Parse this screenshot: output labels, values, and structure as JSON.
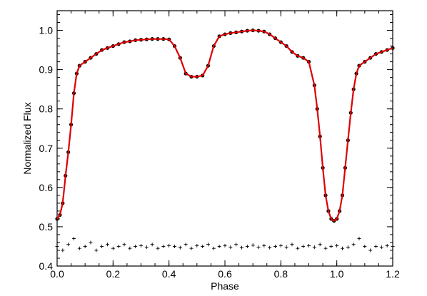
{
  "chart_data": {
    "type": "scatter",
    "title": "",
    "xlabel": "Phase",
    "ylabel": "Normalized Flux",
    "xlim": [
      0.0,
      1.2
    ],
    "ylim": [
      0.4,
      1.05
    ],
    "x_ticks": [
      0.0,
      0.2,
      0.4,
      0.6,
      0.8,
      1.0,
      1.2
    ],
    "x_tick_labels": [
      "0.0",
      "0.2",
      "0.4",
      "0.6",
      "0.8",
      "1.0",
      "1.2"
    ],
    "y_ticks": [
      0.4,
      0.5,
      0.6,
      0.7,
      0.8,
      0.9,
      1.0
    ],
    "y_tick_labels": [
      "0.4",
      "0.5",
      "0.6",
      "0.7",
      "0.8",
      "0.9",
      "1.0"
    ],
    "grid": false,
    "legend": "none",
    "colors": {
      "observations": "#000000",
      "model": "#dd0000",
      "residuals": "#000000"
    },
    "series": [
      {
        "kind": "observations",
        "marker": "dot",
        "color": "#000000",
        "x": [
          0.0,
          0.01,
          0.02,
          0.03,
          0.04,
          0.05,
          0.06,
          0.07,
          0.08,
          0.1,
          0.12,
          0.14,
          0.16,
          0.18,
          0.2,
          0.22,
          0.24,
          0.26,
          0.28,
          0.3,
          0.32,
          0.34,
          0.36,
          0.38,
          0.4,
          0.42,
          0.44,
          0.46,
          0.48,
          0.5,
          0.52,
          0.54,
          0.56,
          0.58,
          0.6,
          0.62,
          0.64,
          0.66,
          0.68,
          0.7,
          0.72,
          0.74,
          0.76,
          0.78,
          0.8,
          0.82,
          0.84,
          0.86,
          0.88,
          0.9,
          0.92,
          0.93,
          0.94,
          0.95,
          0.96,
          0.97,
          0.98,
          0.99,
          1.0,
          1.01,
          1.02,
          1.03,
          1.04,
          1.05,
          1.06,
          1.07,
          1.08,
          1.1,
          1.12,
          1.14,
          1.16,
          1.18,
          1.2
        ],
        "y": [
          0.52,
          0.53,
          0.56,
          0.63,
          0.69,
          0.76,
          0.84,
          0.89,
          0.91,
          0.92,
          0.93,
          0.94,
          0.95,
          0.955,
          0.96,
          0.965,
          0.97,
          0.972,
          0.975,
          0.976,
          0.977,
          0.978,
          0.978,
          0.978,
          0.977,
          0.96,
          0.93,
          0.89,
          0.882,
          0.882,
          0.885,
          0.91,
          0.96,
          0.985,
          0.99,
          0.993,
          0.995,
          0.997,
          0.999,
          1.0,
          0.999,
          0.997,
          0.99,
          0.98,
          0.97,
          0.96,
          0.945,
          0.935,
          0.93,
          0.92,
          0.86,
          0.8,
          0.73,
          0.65,
          0.58,
          0.54,
          0.52,
          0.515,
          0.52,
          0.54,
          0.58,
          0.65,
          0.72,
          0.79,
          0.85,
          0.89,
          0.91,
          0.92,
          0.93,
          0.94,
          0.945,
          0.95,
          0.955
        ]
      },
      {
        "kind": "model",
        "marker": "line",
        "color": "#dd0000",
        "x": [
          0.0,
          0.01,
          0.02,
          0.03,
          0.04,
          0.05,
          0.06,
          0.07,
          0.08,
          0.1,
          0.12,
          0.14,
          0.16,
          0.18,
          0.2,
          0.22,
          0.24,
          0.26,
          0.28,
          0.3,
          0.32,
          0.34,
          0.36,
          0.38,
          0.4,
          0.42,
          0.44,
          0.46,
          0.48,
          0.5,
          0.52,
          0.54,
          0.56,
          0.58,
          0.6,
          0.62,
          0.64,
          0.66,
          0.68,
          0.7,
          0.72,
          0.74,
          0.76,
          0.78,
          0.8,
          0.82,
          0.84,
          0.86,
          0.88,
          0.9,
          0.92,
          0.93,
          0.94,
          0.95,
          0.96,
          0.97,
          0.98,
          0.99,
          1.0,
          1.01,
          1.02,
          1.03,
          1.04,
          1.05,
          1.06,
          1.07,
          1.08,
          1.1,
          1.12,
          1.14,
          1.16,
          1.18,
          1.2
        ],
        "y": [
          0.52,
          0.53,
          0.56,
          0.63,
          0.69,
          0.76,
          0.84,
          0.89,
          0.91,
          0.92,
          0.93,
          0.94,
          0.95,
          0.955,
          0.96,
          0.965,
          0.97,
          0.972,
          0.975,
          0.976,
          0.977,
          0.978,
          0.978,
          0.978,
          0.977,
          0.96,
          0.93,
          0.89,
          0.882,
          0.882,
          0.885,
          0.91,
          0.96,
          0.985,
          0.99,
          0.993,
          0.995,
          0.997,
          0.999,
          1.0,
          0.999,
          0.997,
          0.99,
          0.98,
          0.97,
          0.96,
          0.945,
          0.935,
          0.93,
          0.92,
          0.86,
          0.8,
          0.73,
          0.65,
          0.58,
          0.54,
          0.52,
          0.515,
          0.52,
          0.54,
          0.58,
          0.65,
          0.72,
          0.79,
          0.85,
          0.89,
          0.91,
          0.92,
          0.93,
          0.94,
          0.945,
          0.95,
          0.955
        ]
      },
      {
        "kind": "residuals",
        "marker": "plus",
        "color": "#000000",
        "x": [
          0.0,
          0.02,
          0.04,
          0.06,
          0.08,
          0.1,
          0.12,
          0.14,
          0.16,
          0.18,
          0.2,
          0.22,
          0.24,
          0.26,
          0.28,
          0.3,
          0.32,
          0.34,
          0.36,
          0.38,
          0.4,
          0.42,
          0.44,
          0.46,
          0.48,
          0.5,
          0.52,
          0.54,
          0.56,
          0.58,
          0.6,
          0.62,
          0.64,
          0.66,
          0.68,
          0.7,
          0.72,
          0.74,
          0.76,
          0.78,
          0.8,
          0.82,
          0.84,
          0.86,
          0.88,
          0.9,
          0.92,
          0.94,
          0.96,
          0.98,
          1.0,
          1.02,
          1.04,
          1.06,
          1.08,
          1.1,
          1.12,
          1.14,
          1.16,
          1.18,
          1.2
        ],
        "y": [
          0.45,
          0.44,
          0.455,
          0.47,
          0.445,
          0.45,
          0.46,
          0.44,
          0.45,
          0.455,
          0.445,
          0.45,
          0.455,
          0.445,
          0.45,
          0.452,
          0.448,
          0.455,
          0.445,
          0.45,
          0.452,
          0.45,
          0.447,
          0.455,
          0.445,
          0.452,
          0.45,
          0.455,
          0.445,
          0.45,
          0.452,
          0.448,
          0.455,
          0.447,
          0.45,
          0.453,
          0.448,
          0.452,
          0.447,
          0.45,
          0.452,
          0.448,
          0.455,
          0.445,
          0.45,
          0.452,
          0.448,
          0.455,
          0.445,
          0.45,
          0.452,
          0.445,
          0.448,
          0.455,
          0.47,
          0.45,
          0.44,
          0.45,
          0.448,
          0.452,
          0.45
        ]
      }
    ]
  }
}
